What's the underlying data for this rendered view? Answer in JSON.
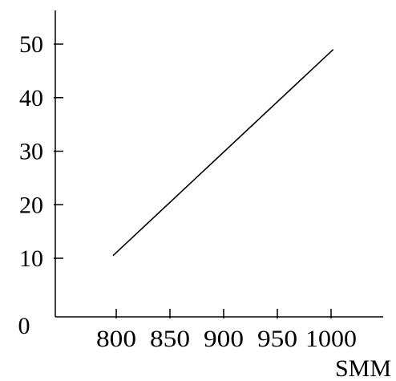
{
  "chart_data": {
    "type": "line",
    "title": "",
    "xlabel": "SMM",
    "ylabel": "",
    "xlim": [
      745,
      1050
    ],
    "ylim": [
      0,
      58
    ],
    "x_ticks": [
      800,
      850,
      900,
      950,
      1000
    ],
    "x_tick_labels": [
      "800",
      "850",
      "900",
      "950",
      "1000"
    ],
    "y_ticks": [
      10,
      20,
      30,
      40,
      50
    ],
    "y_tick_labels": [
      "10",
      "20",
      "30",
      "40",
      "50"
    ],
    "origin_label": "0",
    "grid": false,
    "legend": "none",
    "series": [
      {
        "x": [
          797,
          1002
        ],
        "y": [
          10.5,
          49
        ],
        "color": "#000000"
      }
    ]
  }
}
